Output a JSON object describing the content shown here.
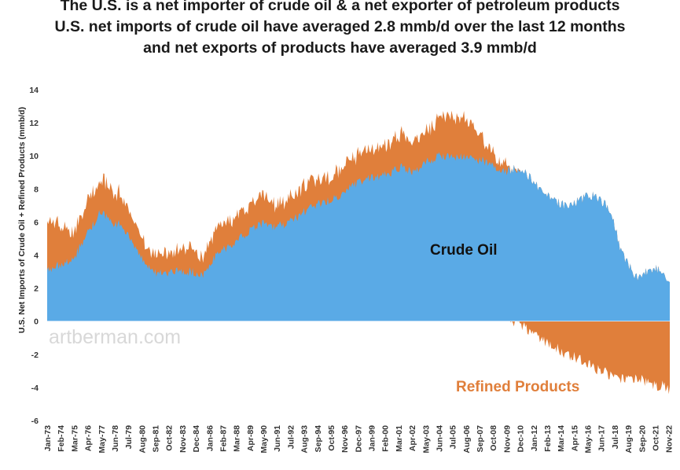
{
  "chart_data": {
    "type": "area",
    "title_lines": [
      "The U.S. is a net importer of crude oil & a net exporter of petroleum products",
      "U.S. net imports of crude oil have averaged 2.8 mmb/d over the last 12 months",
      "and net exports of products have averaged 3.9 mmb/d"
    ],
    "ylabel": "U.S. Net Imports of Crude Oil + Refined Products (mmb/d)",
    "xlabel": "",
    "ylim": [
      -6,
      14
    ],
    "yticks": [
      -6,
      -4,
      -2,
      0,
      2,
      4,
      6,
      8,
      10,
      12,
      14
    ],
    "xlim": [
      "1973-01",
      "2022-12"
    ],
    "xticks": [
      "Jan-73",
      "Feb-74",
      "Mar-75",
      "Apr-76",
      "May-77",
      "Jun-78",
      "Jul-79",
      "Aug-80",
      "Sep-81",
      "Oct-82",
      "Nov-83",
      "Dec-84",
      "Jan-86",
      "Feb-87",
      "Mar-88",
      "Apr-89",
      "May-90",
      "Jun-91",
      "Jul-92",
      "Aug-93",
      "Sep-94",
      "Oct-95",
      "Nov-96",
      "Dec-97",
      "Jan-99",
      "Feb-00",
      "Mar-01",
      "Apr-02",
      "May-03",
      "Jun-04",
      "Jul-05",
      "Aug-06",
      "Sep-07",
      "Oct-08",
      "Nov-09",
      "Dec-10",
      "Jan-12",
      "Feb-13",
      "Mar-14",
      "Apr-15",
      "May-16",
      "Jun-17",
      "Jul-18",
      "Aug-19",
      "Sep-20",
      "Oct-21",
      "Nov-22"
    ],
    "grid": false,
    "legend": "none",
    "annotations": [
      "Crude Oil",
      "Refined Products"
    ],
    "watermark": "artberman.com",
    "series": [
      {
        "name": "Crude Oil",
        "color": "#5aaae6",
        "x": [
          "1973-01",
          "1974-01",
          "1975-01",
          "1976-01",
          "1977-05",
          "1978-01",
          "1979-01",
          "1980-06",
          "1981-06",
          "1982-06",
          "1983-06",
          "1984-06",
          "1985-06",
          "1986-06",
          "1987-06",
          "1988-06",
          "1989-06",
          "1990-06",
          "1991-06",
          "1992-06",
          "1993-06",
          "1994-06",
          "1995-06",
          "1996-06",
          "1997-06",
          "1998-06",
          "1999-06",
          "2000-06",
          "2001-06",
          "2002-06",
          "2003-06",
          "2004-06",
          "2005-06",
          "2006-06",
          "2007-06",
          "2008-06",
          "2009-06",
          "2010-06",
          "2011-06",
          "2012-06",
          "2013-06",
          "2014-06",
          "2015-06",
          "2016-06",
          "2017-01",
          "2017-12",
          "2018-06",
          "2019-01",
          "2019-12",
          "2020-06",
          "2021-06",
          "2022-06",
          "2022-12"
        ],
        "values": [
          3.0,
          3.4,
          3.6,
          5.0,
          6.7,
          6.0,
          5.8,
          4.0,
          3.0,
          2.8,
          3.0,
          3.0,
          2.8,
          3.9,
          4.5,
          5.0,
          5.6,
          5.9,
          5.7,
          6.0,
          6.5,
          7.0,
          7.2,
          7.6,
          8.1,
          8.6,
          8.7,
          8.9,
          9.3,
          9.0,
          9.6,
          10.0,
          10.0,
          9.9,
          9.8,
          9.6,
          9.0,
          9.2,
          8.9,
          8.1,
          7.4,
          7.0,
          7.2,
          7.6,
          7.6,
          6.9,
          6.0,
          4.3,
          3.0,
          2.6,
          3.2,
          3.1,
          2.3
        ]
      },
      {
        "name": "Refined Products",
        "color": "#e07f3b",
        "x": [
          "1973-01",
          "1974-01",
          "1975-01",
          "1976-01",
          "1977-05",
          "1978-01",
          "1979-01",
          "1980-06",
          "1981-06",
          "1982-06",
          "1983-06",
          "1984-06",
          "1985-06",
          "1986-06",
          "1987-06",
          "1988-06",
          "1989-06",
          "1990-06",
          "1991-06",
          "1992-06",
          "1993-06",
          "1994-06",
          "1995-06",
          "1996-06",
          "1997-06",
          "1998-06",
          "1999-06",
          "2000-06",
          "2001-06",
          "2002-06",
          "2003-06",
          "2004-06",
          "2005-06",
          "2006-06",
          "2007-06",
          "2008-06",
          "2009-06",
          "2010-06",
          "2011-06",
          "2012-06",
          "2013-06",
          "2014-06",
          "2015-06",
          "2016-06",
          "2017-06",
          "2018-06",
          "2019-06",
          "2020-06",
          "2021-06",
          "2022-06",
          "2022-12"
        ],
        "values": [
          2.8,
          2.6,
          1.6,
          1.9,
          2.0,
          2.0,
          1.8,
          1.3,
          1.0,
          1.2,
          1.3,
          1.5,
          1.1,
          1.6,
          1.6,
          1.5,
          1.6,
          1.7,
          1.3,
          1.4,
          1.5,
          1.7,
          1.4,
          1.7,
          1.6,
          1.8,
          1.8,
          1.8,
          2.0,
          1.7,
          1.9,
          2.3,
          2.4,
          2.3,
          1.8,
          0.9,
          0.5,
          0.0,
          -0.4,
          -1.1,
          -1.4,
          -1.9,
          -2.2,
          -2.6,
          -3.0,
          -3.3,
          -3.5,
          -3.4,
          -3.8,
          -3.9,
          -4.2
        ]
      }
    ]
  }
}
